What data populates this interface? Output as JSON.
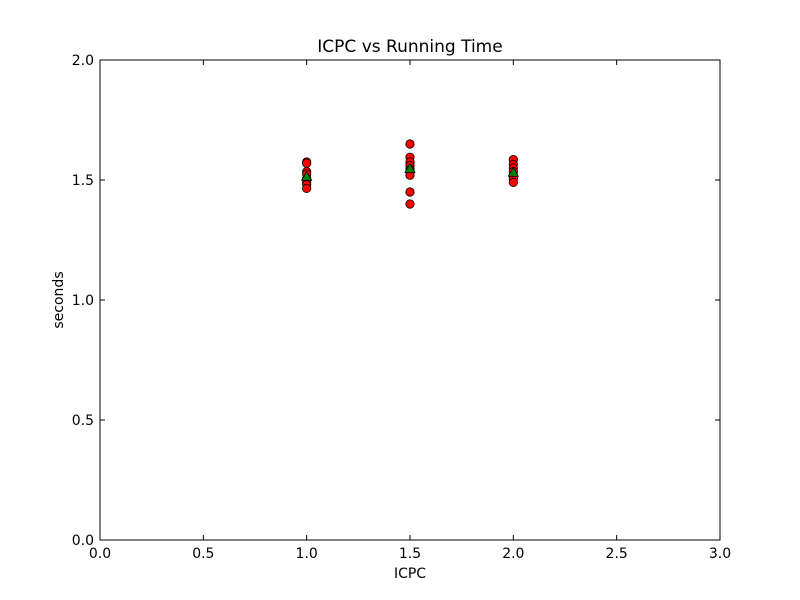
{
  "chart_data": {
    "type": "scatter",
    "title": "ICPC vs Running Time",
    "xlabel": "ICPC",
    "ylabel": "seconds",
    "xlim": [
      0.0,
      3.0
    ],
    "ylim": [
      0.0,
      2.0
    ],
    "xticks": [
      "0.0",
      "0.5",
      "1.0",
      "1.5",
      "2.0",
      "2.5",
      "3.0"
    ],
    "yticks": [
      "0.0",
      "0.5",
      "1.0",
      "1.5",
      "2.0"
    ],
    "grid": false,
    "legend": "none",
    "series": [
      {
        "marker": "circle",
        "color": "#ff0000",
        "points": [
          {
            "x": 1.0,
            "y": 1.575
          },
          {
            "x": 1.0,
            "y": 1.57
          },
          {
            "x": 1.0,
            "y": 1.535
          },
          {
            "x": 1.0,
            "y": 1.525
          },
          {
            "x": 1.0,
            "y": 1.505
          },
          {
            "x": 1.0,
            "y": 1.49
          },
          {
            "x": 1.0,
            "y": 1.48
          },
          {
            "x": 1.0,
            "y": 1.465
          },
          {
            "x": 1.5,
            "y": 1.65
          },
          {
            "x": 1.5,
            "y": 1.595
          },
          {
            "x": 1.5,
            "y": 1.575
          },
          {
            "x": 1.5,
            "y": 1.56
          },
          {
            "x": 1.5,
            "y": 1.545
          },
          {
            "x": 1.5,
            "y": 1.535
          },
          {
            "x": 1.5,
            "y": 1.52
          },
          {
            "x": 1.5,
            "y": 1.45
          },
          {
            "x": 1.5,
            "y": 1.4
          },
          {
            "x": 2.0,
            "y": 1.585
          },
          {
            "x": 2.0,
            "y": 1.565
          },
          {
            "x": 2.0,
            "y": 1.55
          },
          {
            "x": 2.0,
            "y": 1.535
          },
          {
            "x": 2.0,
            "y": 1.52
          },
          {
            "x": 2.0,
            "y": 1.505
          },
          {
            "x": 2.0,
            "y": 1.49
          }
        ]
      },
      {
        "marker": "triangle",
        "color": "#008000",
        "points": [
          {
            "x": 1.0,
            "y": 1.515
          },
          {
            "x": 1.5,
            "y": 1.548
          },
          {
            "x": 2.0,
            "y": 1.532
          }
        ]
      }
    ]
  }
}
